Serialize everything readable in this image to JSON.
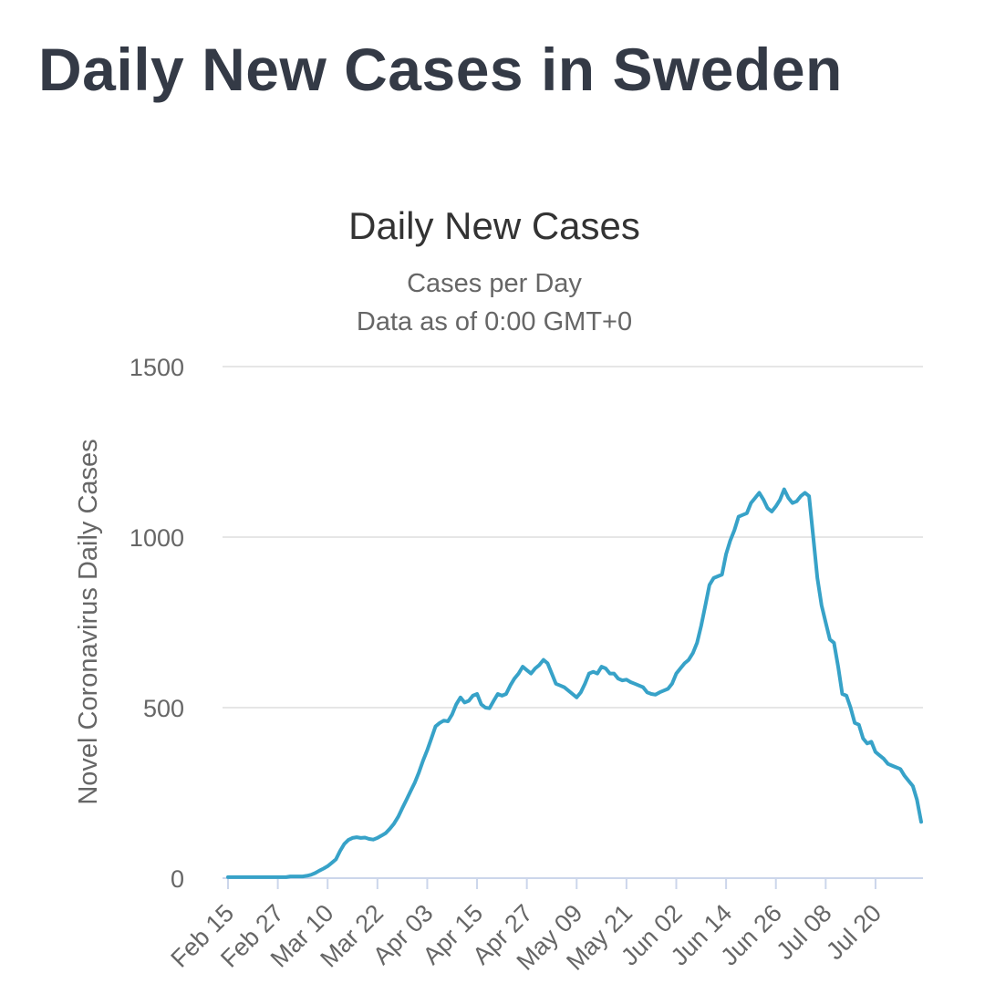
{
  "page": {
    "title": "Daily New Cases in Sweden"
  },
  "chart_data": {
    "type": "line",
    "title": "Daily New Cases",
    "subtitle_lines": [
      "Cases per Day",
      "Data as of 0:00 GMT+0"
    ],
    "ylabel": "Novel Coronavirus Daily Cases",
    "xlabel": "",
    "ylim": [
      0,
      1500
    ],
    "y_ticks": [
      0,
      500,
      1000,
      1500
    ],
    "grid": true,
    "legend": "none",
    "x_tick_labels": [
      "Feb 15",
      "Feb 27",
      "Mar 10",
      "Mar 22",
      "Apr 03",
      "Apr 15",
      "Apr 27",
      "May 09",
      "May 21",
      "Jun 02",
      "Jun 14",
      "Jun 26",
      "Jul 08",
      "Jul 20"
    ],
    "x_tick_index": [
      0,
      12,
      24,
      36,
      48,
      60,
      72,
      84,
      96,
      108,
      120,
      132,
      144,
      156
    ],
    "series": [
      {
        "name": "Daily Cases",
        "color": "#37a2c8",
        "values": [
          3,
          3,
          3,
          3,
          3,
          3,
          3,
          3,
          3,
          3,
          3,
          3,
          3,
          3,
          3,
          5,
          5,
          5,
          5,
          7,
          10,
          15,
          22,
          28,
          35,
          45,
          55,
          80,
          100,
          112,
          118,
          120,
          118,
          119,
          115,
          113,
          118,
          125,
          132,
          145,
          160,
          180,
          205,
          230,
          255,
          280,
          310,
          345,
          375,
          410,
          445,
          455,
          462,
          460,
          480,
          510,
          530,
          515,
          520,
          535,
          540,
          510,
          500,
          498,
          520,
          540,
          535,
          540,
          565,
          585,
          600,
          620,
          610,
          600,
          615,
          625,
          640,
          630,
          600,
          570,
          565,
          560,
          550,
          540,
          530,
          545,
          570,
          600,
          605,
          600,
          620,
          615,
          600,
          600,
          585,
          580,
          582,
          575,
          570,
          565,
          560,
          545,
          540,
          538,
          545,
          550,
          555,
          570,
          600,
          615,
          630,
          640,
          660,
          690,
          740,
          800,
          860,
          880,
          885,
          890,
          950,
          990,
          1020,
          1060,
          1065,
          1070,
          1100,
          1115,
          1130,
          1110,
          1085,
          1075,
          1090,
          1110,
          1140,
          1115,
          1100,
          1105,
          1120,
          1130,
          1120,
          1000,
          880,
          800,
          750,
          700,
          690,
          620,
          540,
          535,
          500,
          455,
          450,
          410,
          395,
          400,
          370,
          360,
          350,
          335,
          330,
          325,
          320,
          300,
          285,
          270,
          230,
          165
        ]
      }
    ]
  }
}
